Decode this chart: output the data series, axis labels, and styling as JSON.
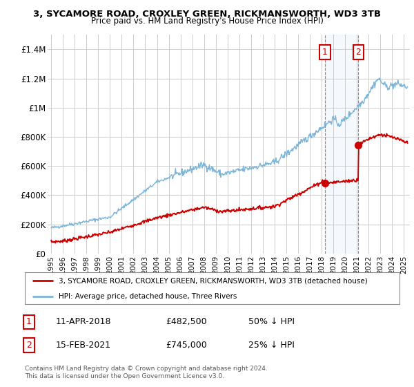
{
  "title_line1": "3, SYCAMORE ROAD, CROXLEY GREEN, RICKMANSWORTH, WD3 3TB",
  "title_line2": "Price paid vs. HM Land Registry's House Price Index (HPI)",
  "ylabel_ticks": [
    "£0",
    "£200K",
    "£400K",
    "£600K",
    "£800K",
    "£1M",
    "£1.2M",
    "£1.4M"
  ],
  "ytick_values": [
    0,
    200000,
    400000,
    600000,
    800000,
    1000000,
    1200000,
    1400000
  ],
  "ylim": [
    0,
    1500000
  ],
  "xlim_start": 1994.7,
  "xlim_end": 2025.5,
  "hpi_color": "#7ab5d9",
  "price_color": "#cc0000",
  "sale1_date": 2018.28,
  "sale1_price": 482500,
  "sale1_label": "1",
  "sale2_date": 2021.12,
  "sale2_price": 745000,
  "sale2_label": "2",
  "shade_start": 2018.28,
  "shade_end": 2021.12,
  "legend_line1": "3, SYCAMORE ROAD, CROXLEY GREEN, RICKMANSWORTH, WD3 3TB (detached house)",
  "legend_line2": "HPI: Average price, detached house, Three Rivers",
  "table_row1_num": "1",
  "table_row1_date": "11-APR-2018",
  "table_row1_price": "£482,500",
  "table_row1_hpi": "50% ↓ HPI",
  "table_row2_num": "2",
  "table_row2_date": "15-FEB-2021",
  "table_row2_price": "£745,000",
  "table_row2_hpi": "25% ↓ HPI",
  "footnote": "Contains HM Land Registry data © Crown copyright and database right 2024.\nThis data is licensed under the Open Government Licence v3.0.",
  "background_color": "#ffffff",
  "plot_bg_color": "#ffffff",
  "grid_color": "#cccccc"
}
